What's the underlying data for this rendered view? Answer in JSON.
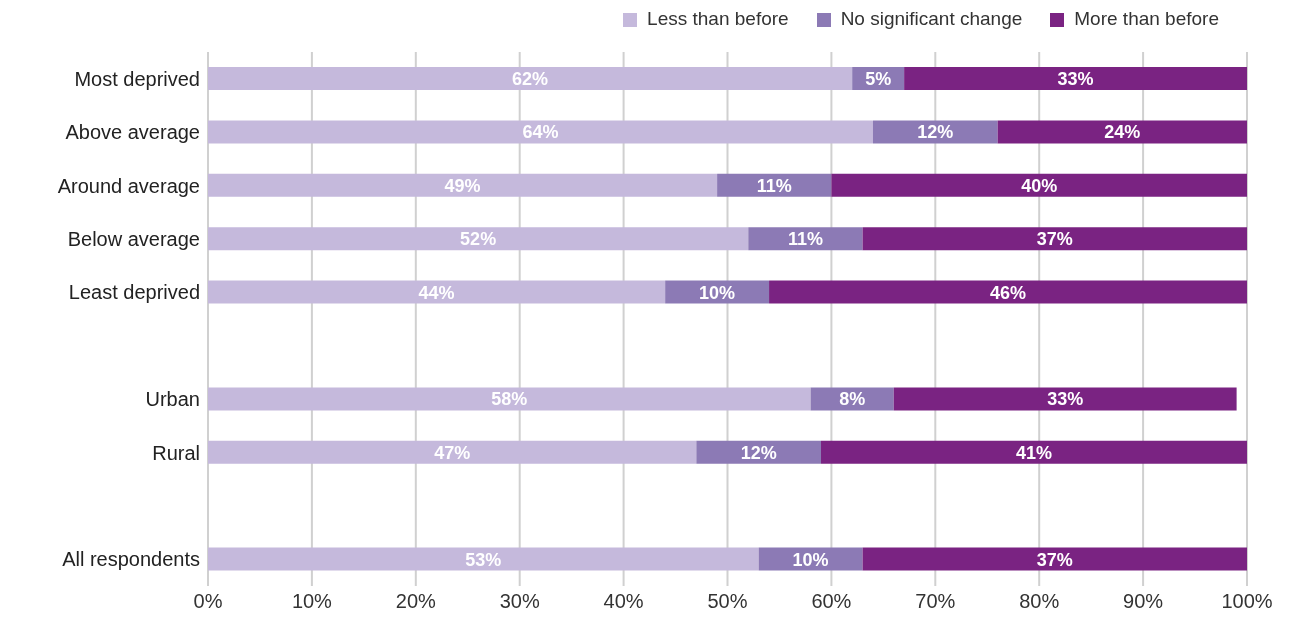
{
  "chart_data": {
    "type": "bar",
    "orientation": "horizontal",
    "stacked": true,
    "categories": [
      "Most deprived",
      "Above average",
      "Around average",
      "Below average",
      "Least deprived",
      null,
      "Urban",
      "Rural",
      null,
      "All respondents"
    ],
    "series": [
      {
        "name": "Less than before",
        "color": "#c5b9dc",
        "values": [
          62,
          64,
          49,
          52,
          44,
          null,
          58,
          47,
          null,
          53
        ],
        "value_labels": [
          "62%",
          "64%",
          "49%",
          "52%",
          "44%",
          null,
          "58%",
          "47%",
          null,
          "53%"
        ]
      },
      {
        "name": "No significant change",
        "color": "#8c7ab5",
        "values": [
          5,
          12,
          11,
          11,
          10,
          null,
          8,
          12,
          null,
          10
        ],
        "value_labels": [
          "5%",
          "12%",
          "11%",
          "11%",
          "10%",
          null,
          "8%",
          "12%",
          null,
          "10%"
        ]
      },
      {
        "name": "More than before",
        "color": "#7a2382",
        "values": [
          33,
          24,
          40,
          37,
          46,
          null,
          33,
          41,
          null,
          37
        ],
        "value_labels": [
          "33%",
          "24%",
          "40%",
          "37%",
          "46%",
          null,
          "33%",
          "41%",
          null,
          "37%"
        ]
      }
    ],
    "xlim": [
      0,
      100
    ],
    "xticks": [
      {
        "value": 0,
        "label": "0%"
      },
      {
        "value": 10,
        "label": "10%"
      },
      {
        "value": 20,
        "label": "20%"
      },
      {
        "value": 30,
        "label": "30%"
      },
      {
        "value": 40,
        "label": "40%"
      },
      {
        "value": 50,
        "label": "50%"
      },
      {
        "value": 60,
        "label": "60%"
      },
      {
        "value": 70,
        "label": "70%"
      },
      {
        "value": 80,
        "label": "80%"
      },
      {
        "value": 90,
        "label": "90%"
      },
      {
        "value": 100,
        "label": "100%"
      }
    ],
    "grid": "x",
    "legend": "top right"
  }
}
